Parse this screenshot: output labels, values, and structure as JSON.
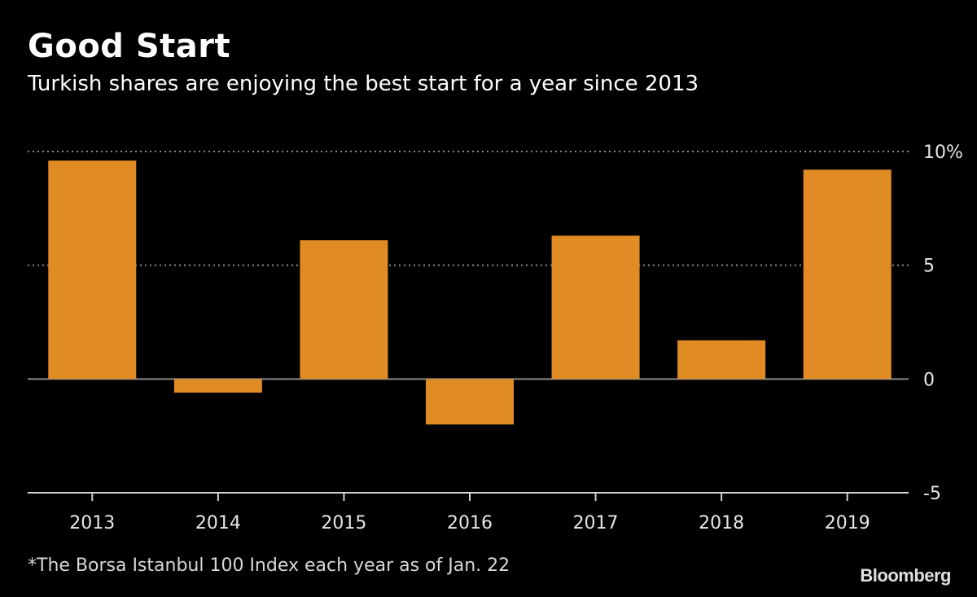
{
  "header": {
    "title": "Good Start",
    "subtitle": "Turkish shares are enjoying the best start for a year since 2013"
  },
  "footnote": "*The Borsa Istanbul 100 Index each year as of Jan. 22",
  "brand": "Bloomberg",
  "colors": {
    "background": "#000000",
    "bar": "#e08b24",
    "grid": "#8a8a8a",
    "axis": "#d0d0d0"
  },
  "chart_data": {
    "type": "bar",
    "categories": [
      "2013",
      "2014",
      "2015",
      "2016",
      "2017",
      "2018",
      "2019"
    ],
    "values": [
      9.6,
      -0.6,
      6.1,
      -2.0,
      6.3,
      1.7,
      9.2
    ],
    "ylim": [
      -5,
      10
    ],
    "yticks": [
      10,
      5,
      0,
      -5
    ],
    "ytick_labels": [
      "10%",
      "5",
      "0",
      "-5"
    ],
    "y_axis_side": "right",
    "grid": "dotted horizontal"
  }
}
